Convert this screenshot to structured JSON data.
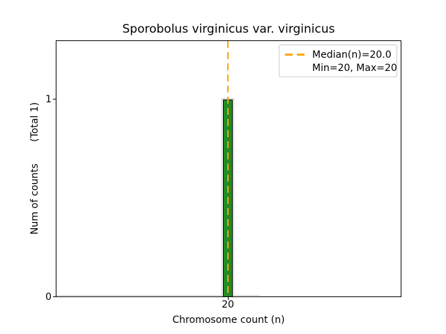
{
  "figure": {
    "title": "Sporobolus virginicus var. virginicus"
  },
  "axes": {
    "xlabel": "Chromosome count (n)",
    "ylabel": "Num of counts       (Total 1)",
    "x_tick_labels": [
      "20"
    ],
    "y_tick_labels": [
      "1",
      "0"
    ]
  },
  "legend": {
    "position": "upper right",
    "items": [
      {
        "label": "Median(n)=20.0",
        "handle": "orange-dashed-line"
      },
      {
        "label": "Min=20, Max=20",
        "handle": "none"
      }
    ]
  },
  "colors": {
    "background": "#ffffff",
    "text": "#000000",
    "bar_fill": "#228B22",
    "bar_edge": "#000000",
    "median_line": "#FFA500",
    "step_outline": "#c8c8c8",
    "legend_border": "#cccccc"
  },
  "chart_data": {
    "type": "bar",
    "title": "Sporobolus virginicus var. virginicus",
    "xlabel": "Chromosome count (n)",
    "ylabel": "Num of counts (Total 1)",
    "categories": [
      20
    ],
    "values": [
      1
    ],
    "total_counts": 1,
    "median_n": 20.0,
    "min_n": 20,
    "max_n": 20,
    "x_ticks": [
      20
    ],
    "y_ticks": [
      0,
      1
    ],
    "ylim": [
      0,
      1.3
    ],
    "grid": false,
    "legend_position": "upper right",
    "legend_entries": [
      "Median(n)=20.0",
      "Min=20, Max=20"
    ],
    "median_line": {
      "x": 20,
      "style": "dashed",
      "color": "#FFA500"
    },
    "bar_style": {
      "fill": "#228B22",
      "edge": "#000000"
    }
  }
}
